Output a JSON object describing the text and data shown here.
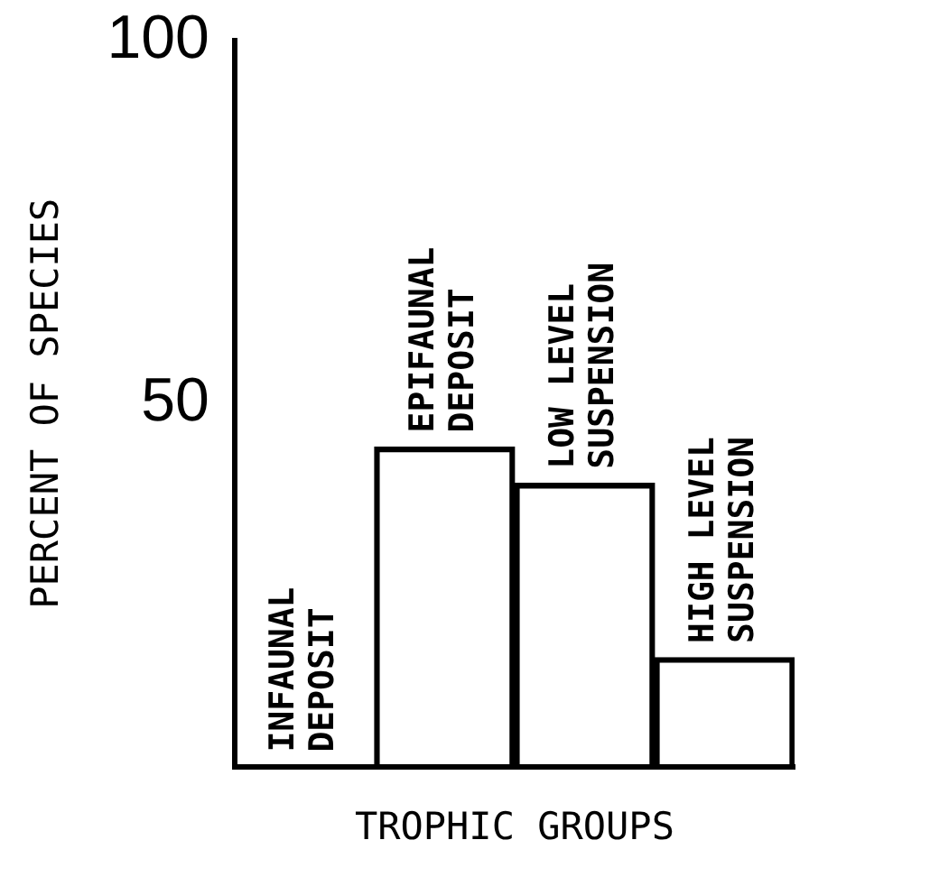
{
  "chart_data": {
    "type": "bar",
    "xlabel": "TROPHIC GROUPS",
    "ylabel": "PERCENT OF SPECIES",
    "categories": [
      "INFAUNAL DEPOSIT",
      "EPIFAUNAL DEPOSIT",
      "LOW LEVEL SUSPENSION",
      "HIGH LEVEL SUSPENSION"
    ],
    "values": [
      0,
      44,
      39,
      15
    ],
    "color": "#000000",
    "ylim": [
      0,
      100
    ],
    "yticks": [
      50,
      100
    ],
    "grid": false,
    "legend": false
  }
}
